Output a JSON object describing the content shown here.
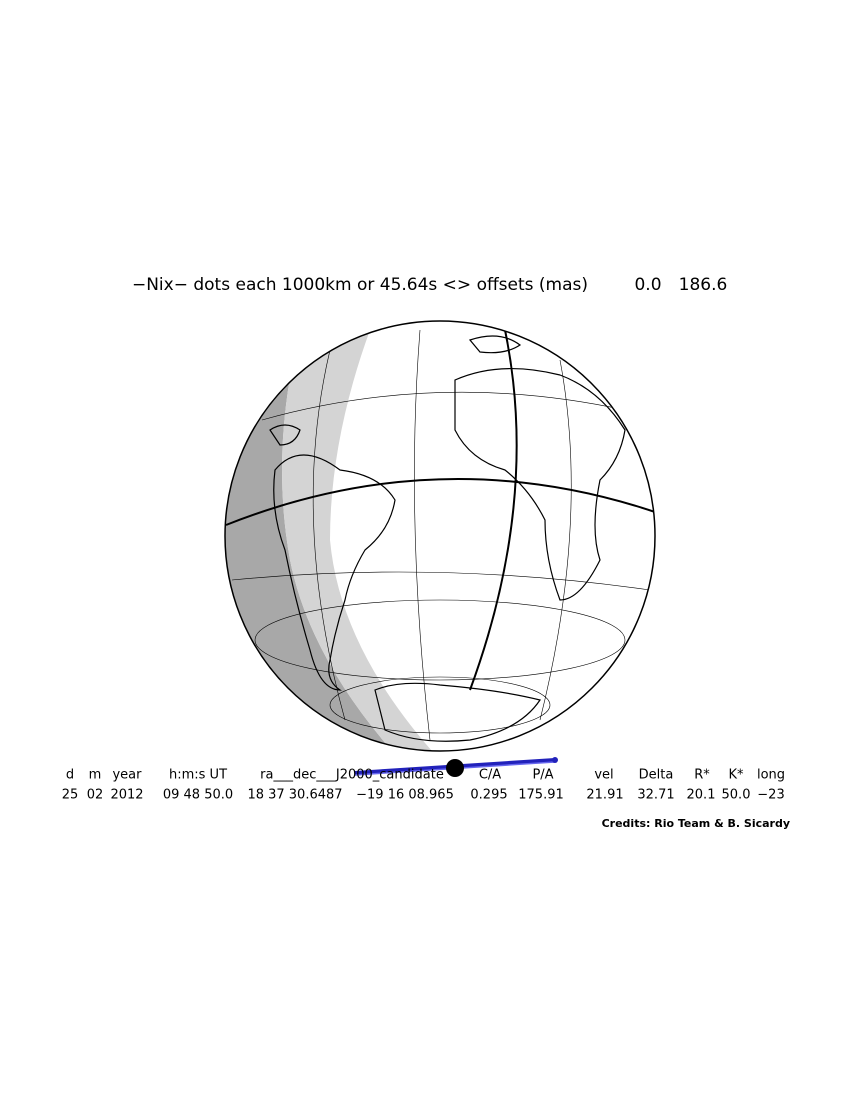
{
  "title": "−Nix− dots each 1000km or 45.64s <> offsets (mas)",
  "offsets": [
    "0.0",
    "186.6"
  ],
  "table": {
    "header": [
      "d",
      "m",
      "year",
      "h:m:s UT",
      "ra___dec___J2000_candidate",
      "C/A",
      "P/A",
      "vel",
      "Delta",
      "R*",
      "K*",
      "long"
    ],
    "values": [
      "25",
      "02",
      "2012",
      "09 48 50.0",
      "18 37 30.6487",
      "−19 16 08.965",
      "0.295",
      "175.91",
      "21.91",
      "32.71",
      "20.1",
      "50.0",
      "−23"
    ]
  },
  "credits": "Credits: Rio Team & B. Sicardy"
}
